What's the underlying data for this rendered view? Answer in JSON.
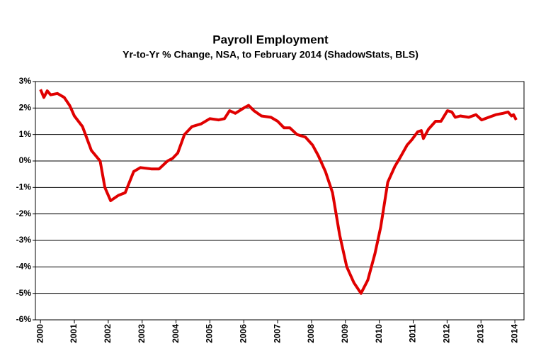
{
  "chart_data": {
    "type": "line",
    "title": "Payroll Employment",
    "subtitle": "Yr-to-Yr % Change, NSA, to February 2014 (ShadowStats, BLS)",
    "x": [
      2000.0,
      2000.1,
      2000.2,
      2000.3,
      2000.5,
      2000.7,
      2000.86,
      2001.0,
      2001.24,
      2001.5,
      2001.76,
      2001.9,
      2002.07,
      2002.3,
      2002.5,
      2002.75,
      2002.95,
      2003.27,
      2003.5,
      2003.75,
      2003.9,
      2004.05,
      2004.25,
      2004.47,
      2004.74,
      2005.0,
      2005.26,
      2005.43,
      2005.58,
      2005.75,
      2006.0,
      2006.14,
      2006.3,
      2006.52,
      2006.8,
      2007.0,
      2007.19,
      2007.36,
      2007.57,
      2007.82,
      2008.03,
      2008.2,
      2008.41,
      2008.62,
      2008.83,
      2009.04,
      2009.25,
      2009.46,
      2009.66,
      2009.87,
      2010.04,
      2010.25,
      2010.46,
      2010.6,
      2010.82,
      2010.96,
      2011.13,
      2011.24,
      2011.3,
      2011.45,
      2011.66,
      2011.82,
      2012.01,
      2012.14,
      2012.24,
      2012.39,
      2012.64,
      2012.85,
      2013.02,
      2013.23,
      2013.44,
      2013.65,
      2013.8,
      2013.9,
      2013.96,
      2014.04
    ],
    "series": [
      {
        "name": "Payroll Employment",
        "color": "#e00000",
        "values": [
          2.7,
          2.4,
          2.65,
          2.5,
          2.55,
          2.4,
          2.1,
          1.7,
          1.3,
          0.4,
          0.0,
          -1.0,
          -1.5,
          -1.3,
          -1.2,
          -0.4,
          -0.25,
          -0.3,
          -0.3,
          0.0,
          0.1,
          0.3,
          1.0,
          1.3,
          1.4,
          1.6,
          1.55,
          1.6,
          1.9,
          1.8,
          2.0,
          2.1,
          1.9,
          1.7,
          1.65,
          1.5,
          1.25,
          1.25,
          1.0,
          0.9,
          0.6,
          0.2,
          -0.4,
          -1.2,
          -2.8,
          -4.0,
          -4.6,
          -5.0,
          -4.5,
          -3.5,
          -2.5,
          -0.8,
          -0.2,
          0.1,
          0.6,
          0.8,
          1.1,
          1.15,
          0.85,
          1.2,
          1.5,
          1.5,
          1.9,
          1.85,
          1.65,
          1.7,
          1.65,
          1.75,
          1.55,
          1.65,
          1.75,
          1.8,
          1.85,
          1.7,
          1.75,
          1.55
        ]
      }
    ],
    "xlim": [
      1999.85,
      2014.27
    ],
    "xticks": [
      2000,
      2001,
      2002,
      2003,
      2004,
      2005,
      2006,
      2007,
      2008,
      2009,
      2010,
      2011,
      2012,
      2013,
      2014
    ],
    "ylim": [
      -6,
      3
    ],
    "yticks": [
      {
        "value": -6,
        "label": "-6%"
      },
      {
        "value": -5,
        "label": "-5%"
      },
      {
        "value": -4,
        "label": "-4%"
      },
      {
        "value": -3,
        "label": "-3%"
      },
      {
        "value": -2,
        "label": "-2%"
      },
      {
        "value": -1,
        "label": "-1%"
      },
      {
        "value": 0,
        "label": "0%"
      },
      {
        "value": 1,
        "label": "1%"
      },
      {
        "value": 2,
        "label": "2%"
      },
      {
        "value": 3,
        "label": "3%"
      }
    ],
    "grid": true
  }
}
